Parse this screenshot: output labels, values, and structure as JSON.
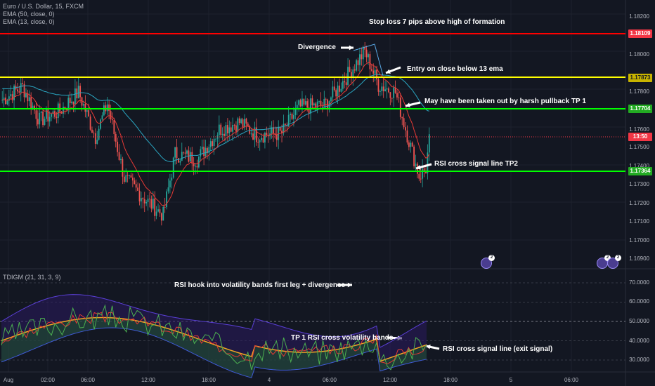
{
  "legend": {
    "symbol": "Euro / U.S. Dollar, 15, FXCM",
    "ema50": "EMA (50, close, 0)",
    "ema13": "EMA (13, close, 0)",
    "indicator": "TDIGM (21, 31, 3, 9)"
  },
  "price_axis": [
    "1.18200",
    "1.18000",
    "1.17800",
    "1.17600",
    "1.17500",
    "1.17400",
    "1.17300",
    "1.17200",
    "1.17100",
    "1.17000",
    "1.16900"
  ],
  "rsi_axis": [
    "70.0000",
    "60.0000",
    "50.0000",
    "40.0000",
    "30.0000"
  ],
  "price_tags": [
    {
      "label": "1.18109",
      "color": "#f23645"
    },
    {
      "label": "1.17873",
      "color": "#c8b400"
    },
    {
      "label": "1.17704",
      "color": "#22ab22"
    },
    {
      "label": "13:50",
      "color": "#f23645"
    },
    {
      "label": "1.17364",
      "color": "#22ab22"
    }
  ],
  "time_axis": [
    "Aug",
    "02:00",
    "06:00",
    "12:00",
    "18:00",
    "4",
    "06:00",
    "12:00",
    "18:00",
    "5",
    "06:00"
  ],
  "annotations": [
    "Stop loss 7 pips above high of formation",
    "Divergence",
    "Entry on close below 13 ema",
    "May have been taken out by harsh pullback TP 1",
    "RSI cross signal line TP2",
    "RSI hook into volatility bands first leg + divergence",
    "TP 1 RSI cross volatility bands",
    "RSI cross signal line (exit signal)"
  ],
  "badges": [
    "2",
    "2",
    "2"
  ],
  "colors": {
    "background": "#131722",
    "up": "#26a69a",
    "down": "#ef5350",
    "stop_line": "#ff0000",
    "entry_line": "#ffff00",
    "tp_line": "#00ff00",
    "ema50": "#2aa5c0",
    "ema13": "#e53935"
  },
  "chart_data": {
    "type": "candlestick",
    "symbol": "Euro / U.S. Dollar",
    "timeframe": "15",
    "horizontal_levels": [
      1.18109,
      1.17873,
      1.17704,
      1.17364
    ],
    "last_price_countdown": "13:50",
    "y_range": [
      1.169,
      1.182
    ],
    "rsi_range": [
      30,
      70
    ]
  }
}
